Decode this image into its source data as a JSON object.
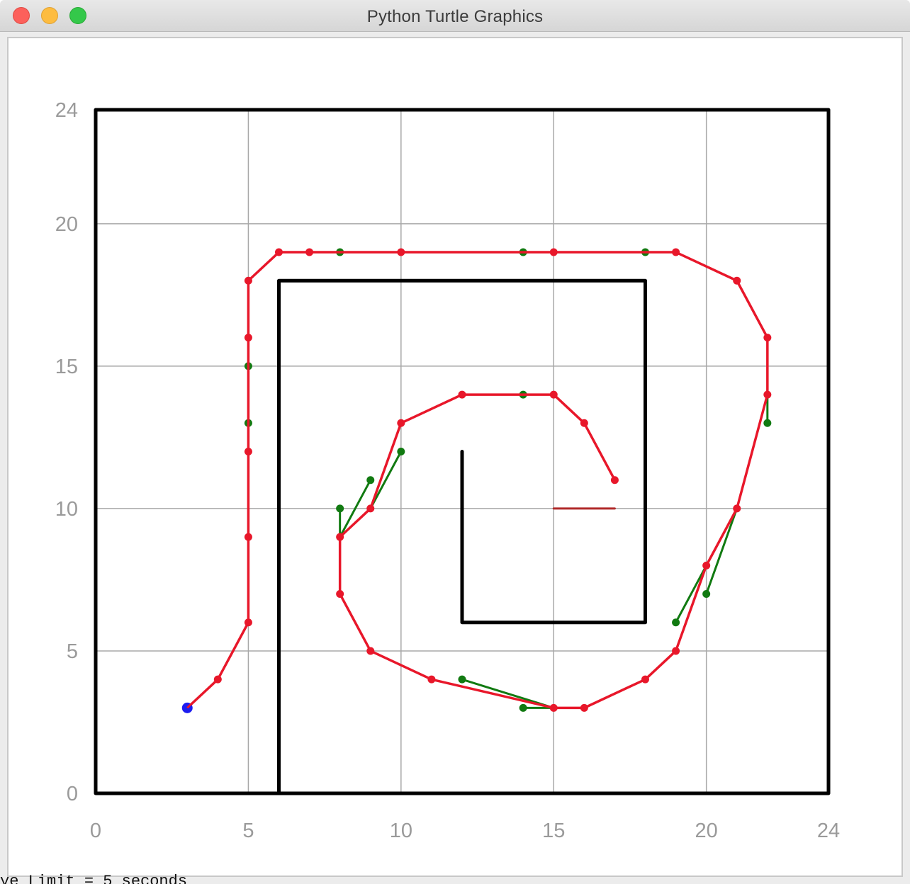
{
  "window": {
    "title": "Python Turtle Graphics",
    "buttons": [
      "close",
      "minimize",
      "zoom"
    ]
  },
  "background_text": "ye Limit = 5 seconds",
  "colors": {
    "grid": "#a8a8a8",
    "walls": "#000000",
    "path": "#e8172a",
    "search": "#117a11",
    "start": "#1c1cf0",
    "goal_line": "#b02a2a"
  },
  "chart_data": {
    "type": "scatter",
    "title": "",
    "xlabel": "",
    "ylabel": "",
    "xlim": [
      0,
      24
    ],
    "ylim": [
      0,
      24
    ],
    "x_ticks": [
      "0",
      "5",
      "10",
      "15",
      "20",
      "24"
    ],
    "y_ticks": [
      "0",
      "5",
      "10",
      "15",
      "20",
      "24"
    ],
    "grid_lines": [
      5,
      10,
      15,
      20
    ],
    "walls": [
      [
        [
          0,
          0
        ],
        [
          24,
          0
        ],
        [
          24,
          24
        ],
        [
          0,
          24
        ],
        [
          0,
          0
        ]
      ],
      [
        [
          6,
          0
        ],
        [
          6,
          18
        ],
        [
          18,
          18
        ],
        [
          18,
          6
        ],
        [
          12,
          6
        ],
        [
          12,
          12
        ]
      ]
    ],
    "goal_line": [
      [
        15,
        10
      ],
      [
        17,
        10
      ]
    ],
    "start": [
      3,
      3
    ],
    "series": [
      {
        "values": [
          [
            5,
            15
          ],
          [
            5,
            13
          ],
          [
            8,
            19
          ],
          [
            14,
            19
          ],
          [
            18,
            19
          ],
          [
            14,
            14
          ],
          [
            8,
            10
          ],
          [
            9,
            11
          ],
          [
            10,
            12
          ],
          [
            22,
            13
          ],
          [
            20,
            7
          ],
          [
            19,
            6
          ],
          [
            12,
            4
          ],
          [
            14,
            3
          ]
        ],
        "segments": [
          [
            [
              8,
              10
            ],
            [
              8,
              9
            ]
          ],
          [
            [
              9,
              11
            ],
            [
              8,
              9
            ]
          ],
          [
            [
              10,
              12
            ],
            [
              9,
              10
            ]
          ],
          [
            [
              22,
              13
            ],
            [
              22,
              14
            ]
          ],
          [
            [
              20,
              7
            ],
            [
              21,
              10
            ]
          ],
          [
            [
              19,
              6
            ],
            [
              20,
              8
            ]
          ],
          [
            [
              12,
              4
            ],
            [
              15,
              3
            ]
          ],
          [
            [
              14,
              3
            ],
            [
              15,
              3
            ]
          ]
        ]
      },
      {
        "values": [
          [
            3,
            3
          ],
          [
            4,
            4
          ],
          [
            5,
            6
          ],
          [
            5,
            9
          ],
          [
            5,
            12
          ],
          [
            5,
            16
          ],
          [
            5,
            18
          ],
          [
            6,
            19
          ],
          [
            7,
            19
          ],
          [
            10,
            19
          ],
          [
            15,
            19
          ],
          [
            19,
            19
          ],
          [
            21,
            18
          ],
          [
            22,
            16
          ],
          [
            22,
            14
          ],
          [
            21,
            10
          ],
          [
            20,
            8
          ],
          [
            19,
            5
          ],
          [
            18,
            4
          ],
          [
            16,
            3
          ],
          [
            15,
            3
          ],
          [
            11,
            4
          ],
          [
            9,
            5
          ],
          [
            8,
            7
          ],
          [
            8,
            9
          ],
          [
            9,
            10
          ],
          [
            10,
            13
          ],
          [
            12,
            14
          ],
          [
            15,
            14
          ],
          [
            16,
            13
          ],
          [
            17,
            11
          ]
        ]
      }
    ]
  }
}
